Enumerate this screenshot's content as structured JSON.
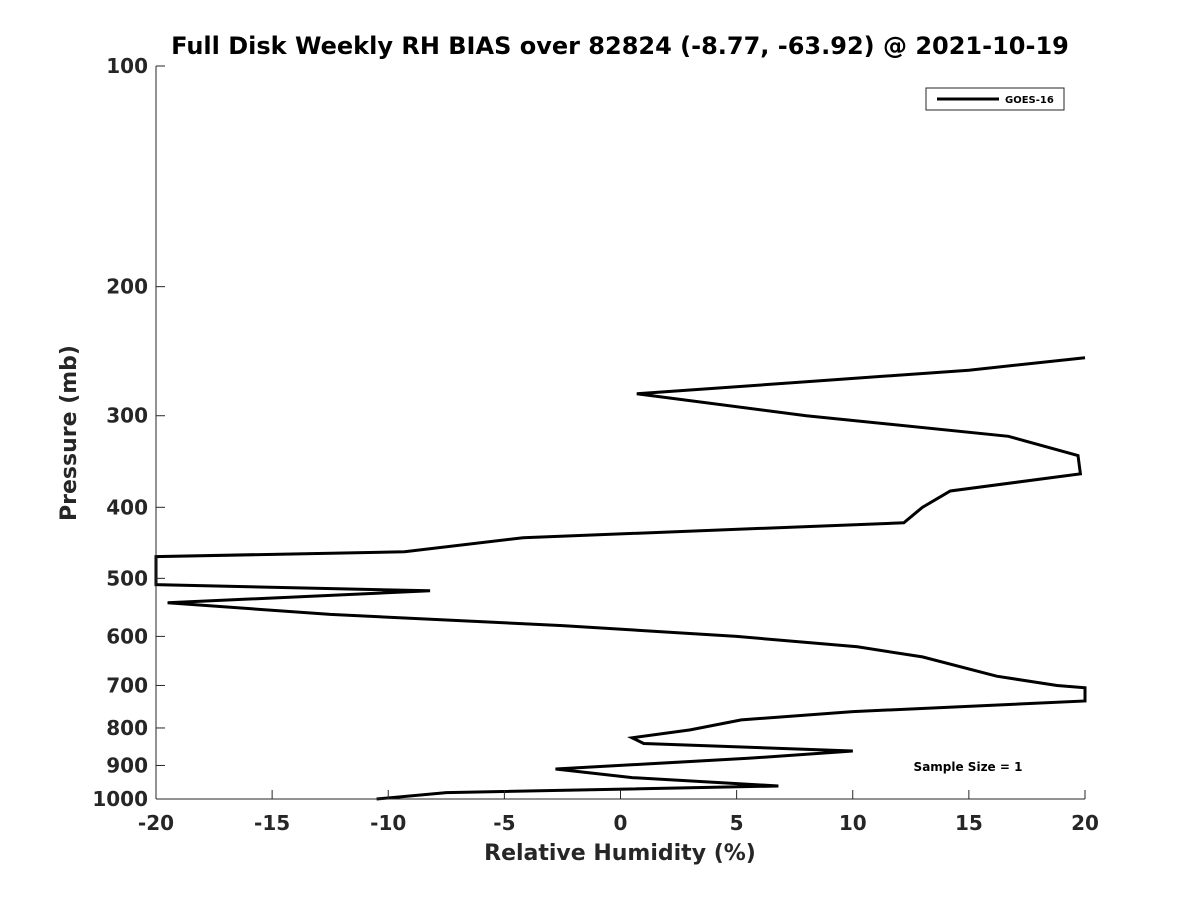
{
  "chart_data": {
    "type": "line",
    "title": "Full Disk Weekly RH BIAS over 82824 (-8.77, -63.92) @ 2021-10-19",
    "xlabel": "Relative Humidity (%)",
    "ylabel": "Pressure (mb)",
    "xlim": [
      -20,
      20
    ],
    "ylim": [
      100,
      1000
    ],
    "y_scale": "log",
    "y_reversed": true,
    "x_ticks": [
      "-20",
      "-15",
      "-10",
      "-5",
      "0",
      "5",
      "10",
      "15",
      "20"
    ],
    "y_ticks": [
      "100",
      "200",
      "300",
      "400",
      "500",
      "600",
      "700",
      "800",
      "900",
      "1000"
    ],
    "grid": false,
    "legend_position": "top-right",
    "annotation": "Sample Size = 1",
    "series": [
      {
        "name": "GOES-16",
        "color": "#000000",
        "points": [
          {
            "x": 20.0,
            "y": 250
          },
          {
            "x": 15.0,
            "y": 260
          },
          {
            "x": 0.7,
            "y": 280
          },
          {
            "x": 8.0,
            "y": 300
          },
          {
            "x": 16.7,
            "y": 320
          },
          {
            "x": 19.7,
            "y": 340
          },
          {
            "x": 19.8,
            "y": 360
          },
          {
            "x": 14.2,
            "y": 380
          },
          {
            "x": 13.0,
            "y": 400
          },
          {
            "x": 12.2,
            "y": 420
          },
          {
            "x": -4.2,
            "y": 440
          },
          {
            "x": -9.3,
            "y": 460
          },
          {
            "x": -20.0,
            "y": 467
          },
          {
            "x": -20.0,
            "y": 510
          },
          {
            "x": -8.2,
            "y": 520
          },
          {
            "x": -19.5,
            "y": 540
          },
          {
            "x": -12.5,
            "y": 560
          },
          {
            "x": -2.5,
            "y": 580
          },
          {
            "x": 5.0,
            "y": 600
          },
          {
            "x": 10.2,
            "y": 620
          },
          {
            "x": 13.0,
            "y": 640
          },
          {
            "x": 16.2,
            "y": 680
          },
          {
            "x": 18.8,
            "y": 700
          },
          {
            "x": 20.0,
            "y": 705
          },
          {
            "x": 20.0,
            "y": 735
          },
          {
            "x": 10.0,
            "y": 760
          },
          {
            "x": 5.2,
            "y": 780
          },
          {
            "x": 3.0,
            "y": 805
          },
          {
            "x": 0.5,
            "y": 825
          },
          {
            "x": 1.0,
            "y": 840
          },
          {
            "x": 10.0,
            "y": 860
          },
          {
            "x": 5.5,
            "y": 880
          },
          {
            "x": -2.8,
            "y": 910
          },
          {
            "x": 0.5,
            "y": 935
          },
          {
            "x": 6.8,
            "y": 960
          },
          {
            "x": -7.5,
            "y": 980
          },
          {
            "x": -10.5,
            "y": 1000
          }
        ]
      }
    ]
  }
}
